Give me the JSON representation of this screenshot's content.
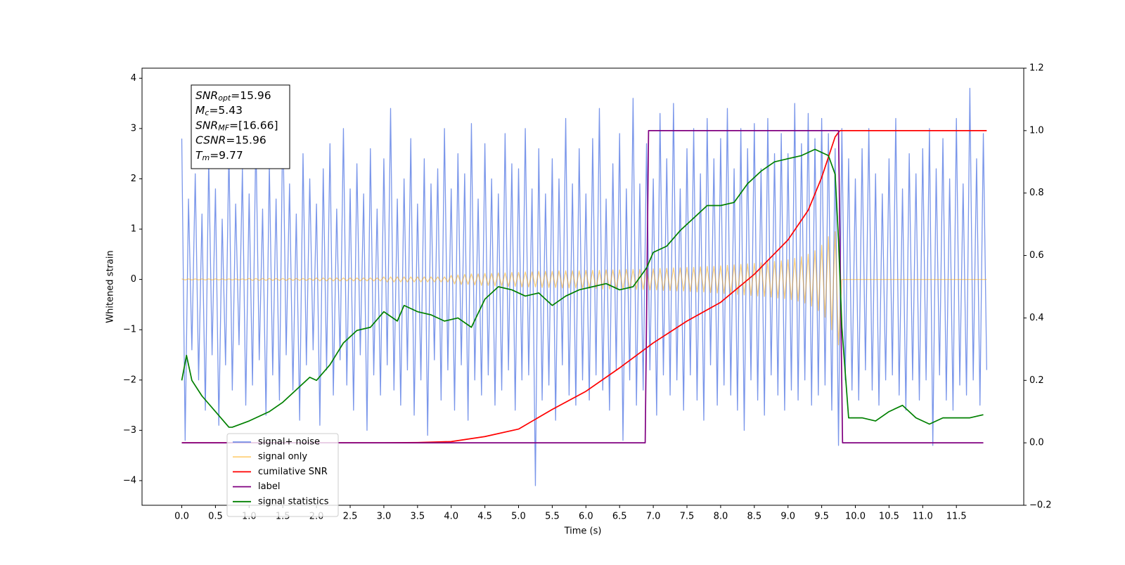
{
  "chart_data": {
    "type": "line",
    "xlabel": "Time (s)",
    "ylabel": "Whitened strain",
    "xlim": [
      -0.59,
      12.5
    ],
    "ylim": [
      -4.49,
      4.2
    ],
    "y2lim": [
      -0.2,
      1.2
    ],
    "xticks": [
      {
        "value": 0,
        "label": "0.0"
      },
      {
        "value": 0.5,
        "label": "0.5"
      },
      {
        "value": 1,
        "label": "1.0"
      },
      {
        "value": 1.5,
        "label": "1.5"
      },
      {
        "value": 2,
        "label": "2.0"
      },
      {
        "value": 2.5,
        "label": "2.5"
      },
      {
        "value": 3,
        "label": "3.0"
      },
      {
        "value": 3.5,
        "label": "3.5"
      },
      {
        "value": 4,
        "label": "4.0"
      },
      {
        "value": 4.5,
        "label": "4.5"
      },
      {
        "value": 5,
        "label": "5.0"
      },
      {
        "value": 5.5,
        "label": "5.5"
      },
      {
        "value": 6,
        "label": "6.0"
      },
      {
        "value": 6.5,
        "label": "6.5"
      },
      {
        "value": 7,
        "label": "7.0"
      },
      {
        "value": 7.5,
        "label": "7.5"
      },
      {
        "value": 8,
        "label": "8.0"
      },
      {
        "value": 8.5,
        "label": "8.5"
      },
      {
        "value": 9,
        "label": "9.0"
      },
      {
        "value": 9.5,
        "label": "9.5"
      },
      {
        "value": 10,
        "label": "10.0"
      },
      {
        "value": 10.5,
        "label": "10.5"
      },
      {
        "value": 11,
        "label": "11.0"
      },
      {
        "value": 11.5,
        "label": "11.5"
      }
    ],
    "yticks": [
      {
        "value": -4,
        "label": "−4"
      },
      {
        "value": -3,
        "label": "−3"
      },
      {
        "value": -2,
        "label": "−2"
      },
      {
        "value": -1,
        "label": "−1"
      },
      0,
      1,
      2,
      3,
      4
    ],
    "y2ticks": [
      {
        "value": -0.2,
        "label": "−0.2"
      },
      {
        "value": 0,
        "label": "0.0"
      },
      {
        "value": 0.2,
        "label": "0.2"
      },
      {
        "value": 0.4,
        "label": "0.4"
      },
      {
        "value": 0.6,
        "label": "0.6"
      },
      {
        "value": 0.8,
        "label": "0.8"
      },
      {
        "value": 1,
        "label": "1.0"
      },
      {
        "value": 1.2,
        "label": "1.2"
      }
    ],
    "annotation": {
      "lines": [
        {
          "main": "SNR",
          "sub": "opt",
          "rest": "=15.96"
        },
        {
          "main": "M",
          "sub": "c",
          "rest": "=5.43"
        },
        {
          "main": "SNR",
          "sub": "MF",
          "rest": "=[16.66]"
        },
        {
          "main": "CSNR",
          "sub": "",
          "rest": "=15.96"
        },
        {
          "main": "T",
          "sub": "m",
          "rest": "=9.77"
        }
      ]
    },
    "x": [
      0,
      0.05,
      0.1,
      0.15,
      0.2,
      0.25,
      0.3,
      0.35,
      0.4,
      0.45,
      0.5,
      0.55,
      0.6,
      0.65,
      0.7,
      0.75,
      0.8,
      0.85,
      0.9,
      0.95,
      1,
      1.05,
      1.1,
      1.15,
      1.2,
      1.25,
      1.3,
      1.35,
      1.4,
      1.45,
      1.5,
      1.55,
      1.6,
      1.65,
      1.7,
      1.75,
      1.8,
      1.85,
      1.9,
      1.95,
      2,
      2.05,
      2.1,
      2.15,
      2.2,
      2.25,
      2.3,
      2.35,
      2.4,
      2.45,
      2.5,
      2.55,
      2.6,
      2.65,
      2.7,
      2.75,
      2.8,
      2.85,
      2.9,
      2.95,
      3,
      3.05,
      3.1,
      3.15,
      3.2,
      3.25,
      3.3,
      3.35,
      3.4,
      3.45,
      3.5,
      3.55,
      3.6,
      3.65,
      3.7,
      3.75,
      3.8,
      3.85,
      3.9,
      3.95,
      4,
      4.05,
      4.1,
      4.15,
      4.2,
      4.25,
      4.3,
      4.35,
      4.4,
      4.45,
      4.5,
      4.55,
      4.6,
      4.65,
      4.7,
      4.75,
      4.8,
      4.85,
      4.9,
      4.95,
      5,
      5.05,
      5.1,
      5.15,
      5.2,
      5.25,
      5.3,
      5.35,
      5.4,
      5.45,
      5.5,
      5.55,
      5.6,
      5.65,
      5.7,
      5.75,
      5.8,
      5.85,
      5.9,
      5.95,
      6,
      6.05,
      6.1,
      6.15,
      6.2,
      6.25,
      6.3,
      6.35,
      6.4,
      6.45,
      6.5,
      6.55,
      6.6,
      6.65,
      6.7,
      6.75,
      6.8,
      6.85,
      6.9,
      6.95,
      7,
      7.05,
      7.1,
      7.15,
      7.2,
      7.25,
      7.3,
      7.35,
      7.4,
      7.45,
      7.5,
      7.55,
      7.6,
      7.65,
      7.7,
      7.75,
      7.8,
      7.85,
      7.9,
      7.95,
      8,
      8.05,
      8.1,
      8.15,
      8.2,
      8.25,
      8.3,
      8.35,
      8.4,
      8.45,
      8.5,
      8.55,
      8.6,
      8.65,
      8.7,
      8.75,
      8.8,
      8.85,
      8.9,
      8.95,
      9,
      9.05,
      9.1,
      9.15,
      9.2,
      9.25,
      9.3,
      9.35,
      9.4,
      9.45,
      9.5,
      9.55,
      9.6,
      9.65,
      9.7,
      9.75,
      9.8,
      9.85,
      9.9,
      9.95,
      10,
      10.05,
      10.1,
      10.15,
      10.2,
      10.25,
      10.3,
      10.35,
      10.4,
      10.45,
      10.5,
      10.55,
      10.6,
      10.65,
      10.7,
      10.75,
      10.8,
      10.85,
      10.9,
      10.95,
      11,
      11.05,
      11.1,
      11.15,
      11.2,
      11.25,
      11.3,
      11.35,
      11.4,
      11.45,
      11.5,
      11.55,
      11.6,
      11.65,
      11.7,
      11.75,
      11.8,
      11.85,
      11.9,
      11.95
    ],
    "series": [
      {
        "name": "signal+ noise",
        "color": "#4169e1",
        "opacity": 0.7,
        "values": [
          2.8,
          -3.2,
          1.6,
          -1.4,
          2.1,
          -2.0,
          1.3,
          -2.6,
          2.4,
          -1.5,
          1.8,
          -2.9,
          1.2,
          -1.7,
          2.6,
          -2.2,
          1.5,
          -1.3,
          2.2,
          -2.5,
          1.7,
          -2.1,
          2.9,
          -1.6,
          1.4,
          -2.7,
          2.3,
          -1.9,
          1.6,
          -2.4,
          3.3,
          -1.5,
          1.9,
          -2.2,
          1.3,
          -2.8,
          2.5,
          -1.7,
          2.0,
          -1.4,
          1.5,
          -2.9,
          2.2,
          -1.8,
          2.7,
          -2.3,
          1.4,
          -1.6,
          3.0,
          -2.1,
          1.8,
          -2.6,
          2.3,
          -1.5,
          1.7,
          -3.0,
          2.6,
          -1.9,
          1.4,
          -2.3,
          2.4,
          -1.7,
          3.4,
          -2.2,
          1.6,
          -2.5,
          2.0,
          -1.8,
          2.8,
          -2.7,
          1.5,
          -2.0,
          2.4,
          -3.1,
          1.9,
          -1.6,
          2.2,
          -2.4,
          3.0,
          -1.8,
          1.8,
          -2.6,
          2.5,
          -1.7,
          2.1,
          -2.8,
          3.1,
          -2.0,
          1.6,
          -2.3,
          2.7,
          -1.9,
          2.0,
          -2.5,
          1.7,
          -2.2,
          2.9,
          -1.8,
          2.3,
          -2.6,
          2.2,
          -2.0,
          3.0,
          -1.9,
          1.8,
          -4.1,
          2.6,
          -2.4,
          1.7,
          -2.1,
          2.4,
          -2.8,
          2.0,
          -1.7,
          3.2,
          -2.3,
          1.9,
          -2.5,
          2.6,
          -2.0,
          1.7,
          -2.4,
          2.8,
          -1.9,
          3.4,
          -2.2,
          1.6,
          -2.6,
          2.3,
          -1.8,
          2.9,
          -3.2,
          1.8,
          -2.0,
          3.6,
          -2.5,
          1.9,
          -2.2,
          2.7,
          -1.8,
          2.0,
          -2.7,
          3.3,
          -1.9,
          2.4,
          -2.3,
          3.5,
          -2.0,
          1.8,
          -2.6,
          2.6,
          -1.9,
          3.0,
          -2.4,
          2.1,
          -2.8,
          3.2,
          -1.7,
          2.4,
          -2.5,
          2.8,
          -2.1,
          3.4,
          -2.3,
          2.2,
          -2.6,
          3.0,
          -3.0,
          2.6,
          -2.0,
          3.1,
          -2.4,
          2.2,
          -2.7,
          3.2,
          -1.9,
          2.5,
          -2.3,
          2.9,
          -2.6,
          2.5,
          -2.2,
          3.5,
          -2.4,
          2.7,
          -2.0,
          3.3,
          -2.5,
          2.8,
          -2.3,
          3.2,
          -2.1,
          2.9,
          -2.6,
          2.6,
          -3.3,
          3.0,
          -2.0,
          2.4,
          -2.2,
          2.0,
          -2.4,
          2.6,
          -1.8,
          3.0,
          -2.2,
          2.1,
          -2.5,
          1.7,
          -2.0,
          2.4,
          -1.9,
          3.2,
          -2.3,
          1.8,
          -2.6,
          2.5,
          -2.0,
          2.1,
          -2.4,
          2.6,
          -2.0,
          3.0,
          -3.3,
          2.2,
          -1.9,
          2.8,
          -2.4,
          2.0,
          -2.6,
          3.2,
          -2.1,
          1.9,
          -2.3,
          3.8,
          -2.0,
          2.4,
          -2.5,
          2.9,
          -1.8
        ]
      },
      {
        "name": "signal only",
        "color": "#ffa500",
        "opacity": 0.5,
        "values": [
          0.01,
          -0.01,
          0.01,
          -0.01,
          0.01,
          -0.01,
          0.01,
          -0.01,
          0.01,
          -0.01,
          0.01,
          -0.01,
          0.01,
          -0.01,
          0.01,
          -0.01,
          0.01,
          -0.01,
          0.01,
          -0.01,
          0.02,
          -0.02,
          0.02,
          -0.02,
          0.02,
          -0.02,
          0.02,
          -0.02,
          0.02,
          -0.02,
          0.02,
          -0.02,
          0.02,
          -0.02,
          0.02,
          -0.02,
          0.02,
          -0.02,
          0.02,
          -0.02,
          0.03,
          -0.03,
          0.03,
          -0.03,
          0.03,
          -0.03,
          0.03,
          -0.03,
          0.03,
          -0.03,
          0.03,
          -0.03,
          0.03,
          -0.03,
          0.03,
          -0.03,
          0.03,
          -0.03,
          0.03,
          -0.03,
          0.05,
          -0.05,
          0.05,
          -0.05,
          0.05,
          -0.05,
          0.05,
          -0.05,
          0.05,
          -0.05,
          0.05,
          -0.05,
          0.05,
          -0.05,
          0.05,
          -0.05,
          0.05,
          -0.05,
          0.05,
          -0.05,
          0.08,
          -0.09,
          0.09,
          -0.1,
          0.1,
          -0.1,
          0.11,
          -0.11,
          0.11,
          -0.12,
          0.12,
          -0.12,
          0.12,
          -0.13,
          0.13,
          -0.13,
          0.13,
          -0.14,
          0.14,
          -0.14,
          0.14,
          -0.15,
          0.15,
          -0.15,
          0.15,
          -0.15,
          0.16,
          -0.16,
          0.16,
          -0.16,
          0.16,
          -0.16,
          0.17,
          -0.17,
          0.17,
          -0.17,
          0.17,
          -0.17,
          0.17,
          -0.18,
          0.18,
          -0.18,
          0.18,
          -0.18,
          0.18,
          -0.19,
          0.19,
          -0.19,
          0.19,
          -0.19,
          0.19,
          -0.2,
          0.2,
          -0.2,
          0.2,
          -0.2,
          0.2,
          -0.2,
          0.21,
          -0.21,
          0.21,
          -0.21,
          0.22,
          -0.22,
          0.22,
          -0.22,
          0.23,
          -0.23,
          0.23,
          -0.23,
          0.24,
          -0.24,
          0.24,
          -0.25,
          0.25,
          -0.25,
          0.26,
          -0.26,
          0.26,
          -0.27,
          0.27,
          -0.28,
          0.28,
          -0.29,
          0.29,
          -0.3,
          0.3,
          -0.31,
          0.31,
          -0.32,
          0.32,
          -0.33,
          0.33,
          -0.34,
          0.35,
          -0.35,
          0.36,
          -0.37,
          0.37,
          -0.38,
          0.39,
          -0.4,
          0.42,
          -0.43,
          0.45,
          -0.47,
          0.5,
          -0.53,
          0.57,
          -0.62,
          0.68,
          -0.75,
          0.85,
          -1.0,
          0.95,
          -1.3,
          0,
          0,
          0,
          0,
          0,
          0,
          0,
          0,
          0,
          0,
          0,
          0,
          0,
          0,
          0,
          0,
          0,
          0,
          0,
          0,
          0,
          0,
          0,
          0,
          0,
          0,
          0,
          0,
          0,
          0,
          0,
          0,
          0,
          0,
          0,
          0,
          0,
          0,
          0,
          0,
          0,
          0,
          0,
          0
        ]
      },
      {
        "name": "cumilative SNR",
        "color": "#ff0000",
        "axis": "y2",
        "x": [
          0,
          1,
          2,
          3,
          3.5,
          4,
          4.5,
          5,
          5.5,
          6,
          6.5,
          7,
          7.5,
          8,
          8.5,
          9,
          9.3,
          9.5,
          9.7,
          9.77,
          11.95
        ],
        "values": [
          0,
          0,
          0,
          0,
          0.001,
          0.004,
          0.02,
          0.044,
          0.107,
          0.165,
          0.24,
          0.32,
          0.39,
          0.45,
          0.54,
          0.65,
          0.745,
          0.85,
          0.98,
          1,
          1
        ]
      },
      {
        "name": "label",
        "color": "#800080",
        "axis": "y2",
        "x": [
          0,
          6.88,
          6.93,
          9.75,
          9.81,
          11.9
        ],
        "values": [
          0,
          0,
          1,
          1,
          0,
          0
        ]
      },
      {
        "name": "signal statistics",
        "color": "#008000",
        "axis": "y2",
        "x": [
          0,
          0.07,
          0.15,
          0.3,
          0.5,
          0.7,
          0.75,
          1,
          1.3,
          1.5,
          1.7,
          1.9,
          2,
          2.2,
          2.4,
          2.6,
          2.8,
          3,
          3.2,
          3.3,
          3.5,
          3.7,
          3.9,
          4.1,
          4.3,
          4.5,
          4.7,
          4.9,
          5.1,
          5.3,
          5.5,
          5.7,
          5.9,
          6.1,
          6.3,
          6.5,
          6.7,
          6.9,
          7,
          7.2,
          7.4,
          7.6,
          7.8,
          8,
          8.2,
          8.4,
          8.6,
          8.8,
          9,
          9.2,
          9.4,
          9.6,
          9.7,
          9.75,
          9.8,
          9.9,
          10.1,
          10.3,
          10.5,
          10.7,
          10.9,
          11.1,
          11.3,
          11.5,
          11.7,
          11.9
        ],
        "values": [
          0.2,
          0.28,
          0.2,
          0.15,
          0.1,
          0.05,
          0.05,
          0.07,
          0.1,
          0.13,
          0.17,
          0.21,
          0.2,
          0.25,
          0.32,
          0.36,
          0.37,
          0.42,
          0.39,
          0.44,
          0.42,
          0.41,
          0.39,
          0.4,
          0.37,
          0.46,
          0.5,
          0.49,
          0.47,
          0.48,
          0.44,
          0.47,
          0.49,
          0.5,
          0.51,
          0.49,
          0.5,
          0.56,
          0.61,
          0.63,
          0.68,
          0.72,
          0.76,
          0.76,
          0.77,
          0.83,
          0.87,
          0.9,
          0.91,
          0.92,
          0.94,
          0.92,
          0.86,
          0.65,
          0.37,
          0.08,
          0.08,
          0.07,
          0.1,
          0.12,
          0.08,
          0.06,
          0.08,
          0.08,
          0.08,
          0.09
        ]
      }
    ]
  }
}
